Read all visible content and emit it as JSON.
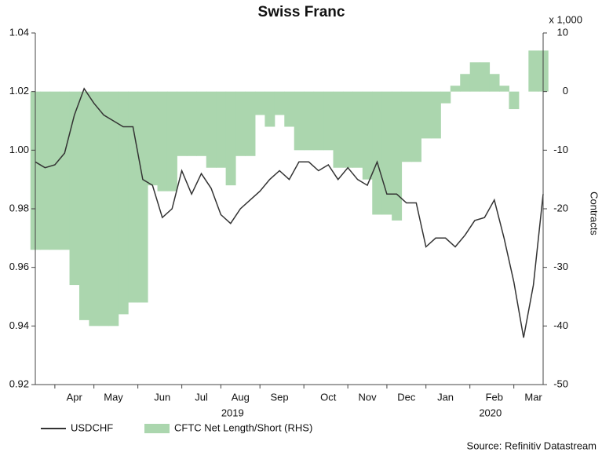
{
  "chart_data": {
    "type": "line",
    "title": "Swiss Franc",
    "categories": [
      null,
      null,
      null,
      null,
      "Apr",
      null,
      null,
      null,
      "May",
      null,
      null,
      null,
      null,
      "Jun",
      null,
      null,
      null,
      "Jul",
      null,
      null,
      null,
      "Aug",
      null,
      null,
      null,
      "Sep",
      null,
      null,
      null,
      null,
      "Oct",
      null,
      null,
      null,
      "Nov",
      null,
      null,
      null,
      "Dec",
      null,
      null,
      null,
      "Jan",
      null,
      null,
      null,
      null,
      "Feb",
      null,
      null,
      null,
      "Mar",
      null
    ],
    "years": [
      "2019",
      "2020"
    ],
    "series": [
      {
        "name": "USDCHF",
        "color": "#333333",
        "values": [
          0.996,
          0.994,
          0.995,
          0.999,
          1.012,
          1.021,
          1.016,
          1.012,
          1.01,
          1.008,
          1.008,
          0.99,
          0.988,
          0.977,
          0.98,
          0.993,
          0.985,
          0.992,
          0.987,
          0.978,
          0.975,
          0.98,
          0.983,
          0.986,
          0.99,
          0.993,
          0.99,
          0.996,
          0.996,
          0.993,
          0.995,
          0.99,
          0.994,
          0.99,
          0.988,
          0.996,
          0.985,
          0.985,
          0.982,
          0.982,
          0.967,
          0.97,
          0.97,
          0.967,
          0.971,
          0.976,
          0.977,
          0.983,
          0.97,
          0.955,
          0.936,
          0.954,
          0.985
        ]
      },
      {
        "name": "CFTC Net Length/Short (RHS)",
        "color": "#abd6ae",
        "axis": "y2",
        "type": "area",
        "values": [
          -27,
          -27,
          -27,
          -27,
          -33,
          -39,
          -40,
          -40,
          -40,
          -38,
          -36,
          -36,
          -16,
          -17,
          -17,
          -11,
          -11,
          -11,
          -13,
          -13,
          -16,
          -11,
          -11,
          -4,
          -6,
          -4,
          -6,
          -10,
          -10,
          -10,
          -10,
          -13,
          -13,
          -13,
          -15,
          -21,
          -21,
          -22,
          -12,
          -12,
          -8,
          -8,
          -2,
          1,
          3,
          5,
          5,
          3,
          1,
          -3,
          0,
          7,
          7
        ]
      }
    ],
    "ylim": [
      0.92,
      1.04
    ],
    "yticks": [
      0.92,
      0.94,
      0.96,
      0.98,
      {
        "value": 1.0,
        "label": "1.00"
      },
      1.02,
      1.04
    ],
    "y2lim": [
      -50,
      10
    ],
    "y2ticks": [
      -50,
      -40,
      -30,
      -20,
      -10,
      0,
      10
    ],
    "y2label": "Contracts",
    "y2unit": "x 1,000",
    "source": "Source: Refinitiv Datastream"
  }
}
